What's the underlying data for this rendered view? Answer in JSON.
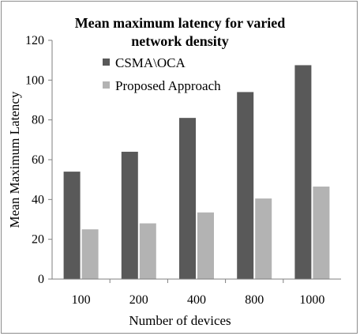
{
  "chart_data": {
    "type": "bar",
    "title_lines": [
      "Mean maximum latency for varied",
      "network density"
    ],
    "xlabel": "Number of devices",
    "ylabel": "Mean Maximum Latency",
    "categories": [
      "100",
      "200",
      "400",
      "800",
      "1000"
    ],
    "ylim": [
      0,
      120
    ],
    "yticks": [
      0,
      20,
      40,
      60,
      80,
      100,
      120
    ],
    "grid": false,
    "legend_position": "top-left",
    "series": [
      {
        "name": "CSMA\\OCA",
        "color": "#595959",
        "values": [
          54,
          64,
          81,
          94,
          107.5
        ]
      },
      {
        "name": "Proposed Approach",
        "color": "#b3b3b3",
        "values": [
          25,
          28,
          33.5,
          40.5,
          46.5
        ]
      }
    ]
  }
}
